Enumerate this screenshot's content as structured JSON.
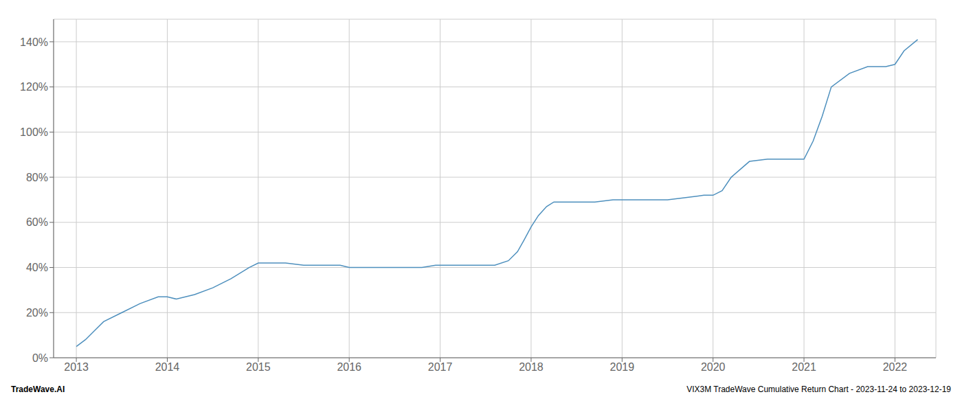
{
  "chart_data": {
    "type": "line",
    "x": [
      2013.0,
      2013.1,
      2013.2,
      2013.3,
      2013.5,
      2013.7,
      2013.9,
      2014.0,
      2014.1,
      2014.3,
      2014.5,
      2014.7,
      2014.9,
      2015.0,
      2015.1,
      2015.3,
      2015.5,
      2015.7,
      2015.9,
      2016.0,
      2016.2,
      2016.4,
      2016.6,
      2016.8,
      2016.95,
      2017.0,
      2017.2,
      2017.4,
      2017.6,
      2017.75,
      2017.85,
      2017.92,
      2018.0,
      2018.08,
      2018.17,
      2018.25,
      2018.33,
      2018.5,
      2018.7,
      2018.9,
      2019.0,
      2019.2,
      2019.4,
      2019.5,
      2019.7,
      2019.9,
      2020.0,
      2020.1,
      2020.2,
      2020.4,
      2020.6,
      2020.8,
      2020.9,
      2021.0,
      2021.1,
      2021.2,
      2021.3,
      2021.5,
      2021.7,
      2021.9,
      2022.0,
      2022.1,
      2022.25
    ],
    "values": [
      5,
      8,
      12,
      16,
      20,
      24,
      27,
      27,
      26,
      28,
      31,
      35,
      40,
      42,
      42,
      42,
      41,
      41,
      41,
      40,
      40,
      40,
      40,
      40,
      41,
      41,
      41,
      41,
      41,
      43,
      47,
      52,
      58,
      63,
      67,
      69,
      69,
      69,
      69,
      70,
      70,
      70,
      70,
      70,
      71,
      72,
      72,
      74,
      80,
      87,
      88,
      88,
      88,
      88,
      96,
      107,
      120,
      126,
      129,
      129,
      130,
      136,
      141
    ],
    "color": "#4d8fbd",
    "xlim": [
      2012.75,
      2022.45
    ],
    "xticks": [
      2013,
      2014,
      2015,
      2016,
      2017,
      2018,
      2019,
      2020,
      2021,
      2022
    ],
    "ylim": [
      0,
      150
    ],
    "yticks": [
      {
        "value": 0,
        "label": "0%"
      },
      {
        "value": 20,
        "label": "20%"
      },
      {
        "value": 40,
        "label": "40%"
      },
      {
        "value": 60,
        "label": "60%"
      },
      {
        "value": 80,
        "label": "80%"
      },
      {
        "value": 100,
        "label": "100%"
      },
      {
        "value": 120,
        "label": "120%"
      },
      {
        "value": 140,
        "label": "140%"
      }
    ],
    "grid": true,
    "annotations": [
      "TradeWave.AI",
      "VIX3M TradeWave Cumulative Return Chart - 2023-11-24 to 2023-12-19"
    ]
  }
}
